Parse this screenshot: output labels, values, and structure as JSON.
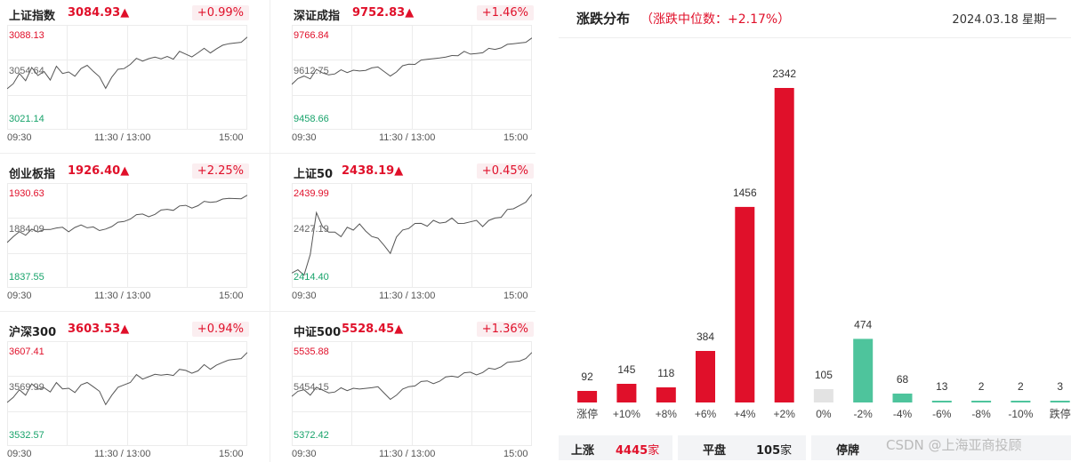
{
  "indices": [
    {
      "name": "上证指数",
      "value": "3084.93▲",
      "change": "+0.99%",
      "high": "3088.13",
      "mid": "3054.64",
      "low": "3021.14",
      "line": [
        0.35,
        0.42,
        0.55,
        0.48,
        0.6,
        0.52,
        0.58,
        0.45,
        0.62,
        0.55,
        0.58,
        0.5,
        0.6,
        0.65,
        0.55,
        0.5,
        0.38,
        0.52,
        0.58,
        0.6,
        0.66,
        0.7,
        0.68,
        0.72,
        0.75,
        0.7,
        0.74,
        0.72,
        0.78,
        0.76,
        0.74,
        0.8,
        0.82,
        0.78,
        0.84,
        0.85,
        0.88,
        0.9,
        0.92,
        0.95
      ]
    },
    {
      "name": "深证成指",
      "value": "9752.83▲",
      "change": "+1.46%",
      "high": "9766.84",
      "mid": "9612.75",
      "low": "9458.66",
      "line": [
        0.4,
        0.48,
        0.52,
        0.5,
        0.58,
        0.55,
        0.54,
        0.52,
        0.58,
        0.56,
        0.6,
        0.56,
        0.58,
        0.62,
        0.6,
        0.56,
        0.52,
        0.58,
        0.62,
        0.65,
        0.66,
        0.68,
        0.7,
        0.72,
        0.74,
        0.72,
        0.75,
        0.76,
        0.78,
        0.76,
        0.78,
        0.8,
        0.82,
        0.82,
        0.85,
        0.86,
        0.88,
        0.9,
        0.92,
        0.94
      ]
    },
    {
      "name": "创业板指",
      "value": "1926.40▲",
      "change": "+2.25%",
      "high": "1930.63",
      "mid": "1884.09",
      "low": "1837.55",
      "line": [
        0.4,
        0.48,
        0.55,
        0.52,
        0.56,
        0.54,
        0.58,
        0.55,
        0.58,
        0.6,
        0.56,
        0.58,
        0.62,
        0.6,
        0.58,
        0.55,
        0.58,
        0.62,
        0.64,
        0.66,
        0.7,
        0.72,
        0.74,
        0.72,
        0.76,
        0.78,
        0.8,
        0.8,
        0.82,
        0.84,
        0.82,
        0.86,
        0.88,
        0.88,
        0.9,
        0.9,
        0.92,
        0.93,
        0.94,
        0.95
      ]
    },
    {
      "name": "上证50",
      "value": "2438.19▲",
      "change": "+0.45%",
      "high": "2439.99",
      "mid": "2427.19",
      "low": "2414.40",
      "line": [
        0.05,
        0.1,
        0.05,
        0.3,
        0.75,
        0.6,
        0.55,
        0.52,
        0.48,
        0.6,
        0.58,
        0.62,
        0.55,
        0.5,
        0.45,
        0.38,
        0.3,
        0.5,
        0.55,
        0.58,
        0.65,
        0.62,
        0.6,
        0.68,
        0.66,
        0.64,
        0.7,
        0.65,
        0.62,
        0.65,
        0.68,
        0.62,
        0.66,
        0.7,
        0.72,
        0.78,
        0.8,
        0.85,
        0.9,
        0.96
      ]
    },
    {
      "name": "沪深300",
      "value": "3603.53▲",
      "change": "+0.94%",
      "high": "3607.41",
      "mid": "3569.99",
      "low": "3532.57",
      "line": [
        0.38,
        0.45,
        0.55,
        0.5,
        0.6,
        0.55,
        0.58,
        0.5,
        0.62,
        0.56,
        0.58,
        0.5,
        0.6,
        0.64,
        0.56,
        0.52,
        0.38,
        0.5,
        0.56,
        0.6,
        0.64,
        0.7,
        0.66,
        0.7,
        0.74,
        0.7,
        0.72,
        0.72,
        0.76,
        0.76,
        0.74,
        0.78,
        0.82,
        0.78,
        0.84,
        0.84,
        0.88,
        0.9,
        0.92,
        0.96
      ]
    },
    {
      "name": "中证500",
      "value": "5528.45▲",
      "change": "+1.36%",
      "high": "5535.88",
      "mid": "5454.15",
      "low": "5372.42",
      "line": [
        0.45,
        0.52,
        0.55,
        0.5,
        0.56,
        0.54,
        0.52,
        0.5,
        0.56,
        0.54,
        0.58,
        0.54,
        0.56,
        0.58,
        0.56,
        0.5,
        0.44,
        0.5,
        0.54,
        0.58,
        0.6,
        0.62,
        0.64,
        0.62,
        0.66,
        0.68,
        0.7,
        0.7,
        0.72,
        0.74,
        0.72,
        0.76,
        0.78,
        0.78,
        0.82,
        0.84,
        0.86,
        0.88,
        0.92,
        0.96
      ]
    }
  ],
  "time_axis": {
    "start": "09:30",
    "mid": "11:30 / 13:00",
    "end": "15:00"
  },
  "distribution": {
    "title": "涨跌分布",
    "subtitle": "（涨跌中位数：+2.17%）",
    "date": "2024.03.18 星期一"
  },
  "chart_data": {
    "type": "bar",
    "categories": [
      "涨停",
      "+10%",
      "+8%",
      "+6%",
      "+4%",
      "+2%",
      "0%",
      "-2%",
      "-4%",
      "-6%",
      "-8%",
      "-10%",
      "跌停"
    ],
    "values": [
      92,
      145,
      118,
      384,
      1456,
      2342,
      105,
      474,
      68,
      13,
      2,
      2,
      3
    ],
    "colors": [
      "#e0102a",
      "#e0102a",
      "#e0102a",
      "#e0102a",
      "#e0102a",
      "#e0102a",
      "#e3e3e3",
      "#4ec49c",
      "#4ec49c",
      "#4ec49c",
      "#4ec49c",
      "#4ec49c",
      "#4ec49c"
    ],
    "title": "涨跌分布"
  },
  "summary": {
    "up_label": "上涨",
    "up_value": "4445",
    "unit": "家",
    "flat_label": "平盘",
    "flat_value": "105",
    "halt_label": "停牌"
  },
  "watermark": "CSDN @上海亚商投顾",
  "colors": {
    "up": "#e0102a",
    "down": "#18a36b",
    "flat": "#e3e3e3"
  }
}
